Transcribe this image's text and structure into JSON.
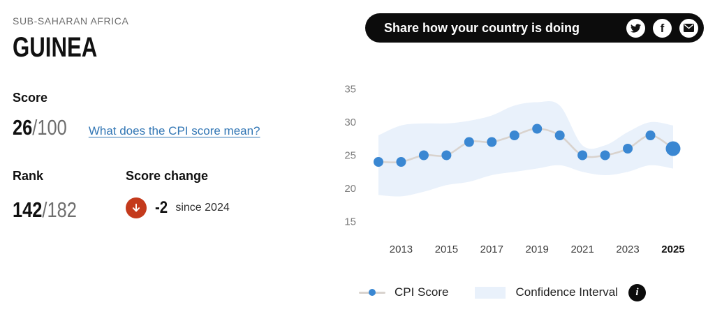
{
  "header": {
    "region": "SUB-SAHARAN AFRICA",
    "country": "GUINEA"
  },
  "score": {
    "label": "Score",
    "value": "26",
    "max": "/100",
    "link": "What does the CPI score mean?"
  },
  "rank": {
    "label": "Rank",
    "value": "142",
    "total": "/182"
  },
  "score_change": {
    "label": "Score change",
    "value": "-2",
    "caption": "since 2024",
    "direction": "down"
  },
  "share": {
    "label": "Share how your country is doing",
    "icons": [
      "twitter-icon",
      "facebook-icon",
      "email-icon"
    ]
  },
  "chart_data": {
    "type": "line",
    "x": [
      2012,
      2013,
      2014,
      2015,
      2016,
      2017,
      2018,
      2019,
      2020,
      2021,
      2022,
      2023,
      2024,
      2025
    ],
    "series": [
      {
        "name": "CPI Score",
        "values": [
          24,
          24,
          25,
          25,
          27,
          27,
          28,
          29,
          28,
          25,
          25,
          26,
          28,
          26
        ]
      }
    ],
    "ci_high": [
      28,
      29.5,
      29.8,
      29.8,
      30.2,
      31,
      32.5,
      33,
      32.5,
      26.5,
      26.5,
      28.5,
      30,
      29.5
    ],
    "ci_low": [
      19,
      18.8,
      19.5,
      20.5,
      21,
      22,
      22.5,
      23,
      23.5,
      22.5,
      22,
      22.5,
      23.5,
      23
    ],
    "yticks": [
      15,
      20,
      25,
      30,
      35
    ],
    "xticks": [
      2013,
      2015,
      2017,
      2019,
      2021,
      2023,
      2025
    ],
    "highlight_x": 2025,
    "legend": [
      "CPI Score",
      "Confidence Interval"
    ],
    "legend_position": "bottom",
    "grid": false,
    "ylim": [
      13,
      36
    ],
    "colors": {
      "point": "#3a87d2",
      "line": "#d9d3ce",
      "band": "#e9f1fb"
    }
  },
  "legend_extra": {
    "info_glyph": "i"
  },
  "colors": {
    "accent_red": "#c43a1c",
    "link_blue": "#3377b5",
    "pill_black": "#0c0c0c"
  }
}
